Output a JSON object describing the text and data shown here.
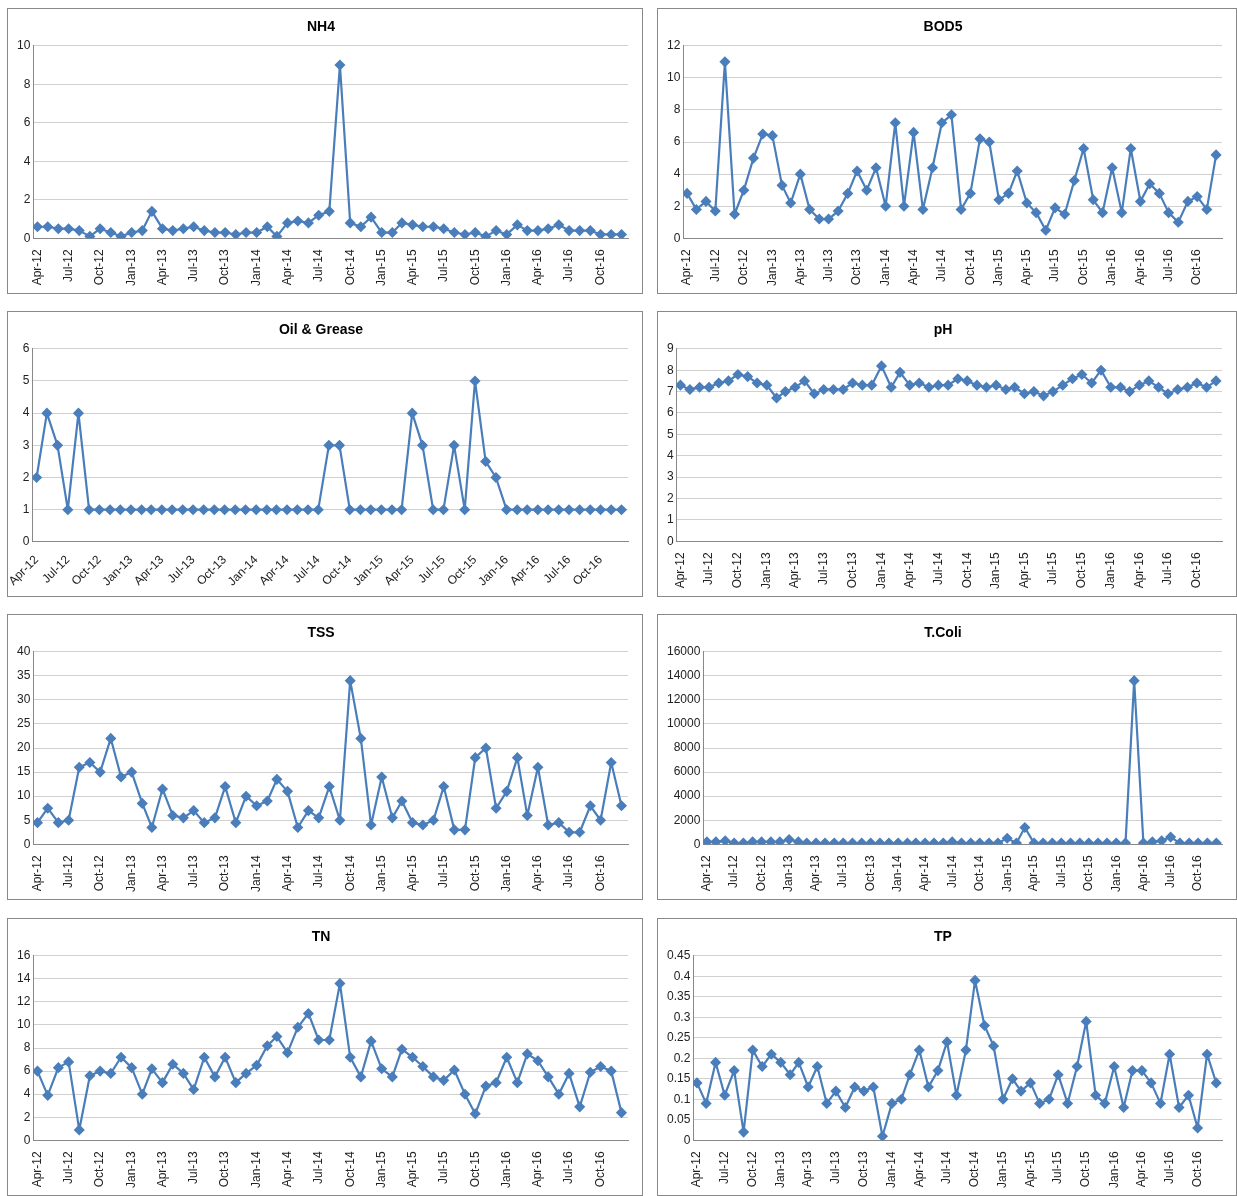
{
  "chart_data": [
    {
      "type": "line",
      "title": "NH4",
      "x": [
        "2012-04",
        "2012-05",
        "2012-06",
        "2012-07",
        "2012-08",
        "2012-09",
        "2012-10",
        "2012-11",
        "2012-12",
        "2013-01",
        "2013-02",
        "2013-03",
        "2013-04",
        "2013-05",
        "2013-06",
        "2013-07",
        "2013-08",
        "2013-09",
        "2013-10",
        "2013-11",
        "2013-12",
        "2014-01",
        "2014-02",
        "2014-03",
        "2014-04",
        "2014-05",
        "2014-06",
        "2014-07",
        "2014-08",
        "2014-09",
        "2014-10",
        "2014-11",
        "2014-12",
        "2015-01",
        "2015-02",
        "2015-03",
        "2015-04",
        "2015-05",
        "2015-06",
        "2015-07",
        "2015-08",
        "2015-09",
        "2015-10",
        "2015-11",
        "2015-12",
        "2016-01",
        "2016-02",
        "2016-03",
        "2016-04",
        "2016-05",
        "2016-06",
        "2016-07",
        "2016-08",
        "2016-09",
        "2016-10",
        "2016-11",
        "2016-12"
      ],
      "series": [
        {
          "color": "#4a7ebb",
          "values": [
            0.6,
            0.6,
            0.5,
            0.5,
            0.4,
            0.1,
            0.5,
            0.3,
            0.1,
            0.3,
            0.4,
            1.4,
            0.5,
            0.4,
            0.5,
            0.6,
            0.4,
            0.3,
            0.3,
            0.2,
            0.3,
            0.3,
            0.6,
            0.1,
            0.8,
            0.9,
            0.8,
            1.2,
            1.4,
            9,
            0.8,
            0.6,
            1.1,
            0.3,
            0.3,
            0.8,
            0.7,
            0.6,
            0.6,
            0.5,
            0.3,
            0.2,
            0.3,
            0.1,
            0.4,
            0.2,
            0.7,
            0.4,
            0.4,
            0.5,
            0.7,
            0.4,
            0.4,
            0.4,
            0.2,
            0.2,
            0.2
          ]
        }
      ],
      "xlim": [
        "2012-03-20",
        "2016-12-20"
      ],
      "xticks": [
        {
          "value": "2012-04",
          "label": "Apr-12"
        },
        {
          "value": "2012-07",
          "label": "Jul-12"
        },
        {
          "value": "2012-10",
          "label": "Oct-12"
        },
        {
          "value": "2013-01",
          "label": "Jan-13"
        },
        {
          "value": "2013-04",
          "label": "Apr-13"
        },
        {
          "value": "2013-07",
          "label": "Jul-13"
        },
        {
          "value": "2013-10",
          "label": "Oct-13"
        },
        {
          "value": "2014-01",
          "label": "Jan-14"
        },
        {
          "value": "2014-04",
          "label": "Apr-14"
        },
        {
          "value": "2014-07",
          "label": "Jul-14"
        },
        {
          "value": "2014-10",
          "label": "Oct-14"
        },
        {
          "value": "2015-01",
          "label": "Jan-15"
        },
        {
          "value": "2015-04",
          "label": "Apr-15"
        },
        {
          "value": "2015-07",
          "label": "Jul-15"
        },
        {
          "value": "2015-10",
          "label": "Oct-15"
        },
        {
          "value": "2016-01",
          "label": "Jan-16"
        },
        {
          "value": "2016-04",
          "label": "Apr-16"
        },
        {
          "value": "2016-07",
          "label": "Jul-16"
        },
        {
          "value": "2016-10",
          "label": "Oct-16"
        }
      ],
      "ylim": [
        0,
        10
      ],
      "yticks": [
        0,
        2,
        4,
        6,
        8,
        10
      ],
      "grid": "y",
      "marker": "diamond"
    },
    {
      "type": "line",
      "title": "BOD5",
      "x": [
        "2012-04",
        "2012-05",
        "2012-06",
        "2012-07",
        "2012-08",
        "2012-09",
        "2012-10",
        "2012-11",
        "2012-12",
        "2013-01",
        "2013-02",
        "2013-03",
        "2013-04",
        "2013-05",
        "2013-06",
        "2013-07",
        "2013-08",
        "2013-09",
        "2013-10",
        "2013-11",
        "2013-12",
        "2014-01",
        "2014-02",
        "2014-03",
        "2014-04",
        "2014-05",
        "2014-06",
        "2014-07",
        "2014-08",
        "2014-09",
        "2014-10",
        "2014-11",
        "2014-12",
        "2015-01",
        "2015-02",
        "2015-03",
        "2015-04",
        "2015-05",
        "2015-06",
        "2015-07",
        "2015-08",
        "2015-09",
        "2015-10",
        "2015-11",
        "2015-12",
        "2016-01",
        "2016-02",
        "2016-03",
        "2016-04",
        "2016-05",
        "2016-06",
        "2016-07",
        "2016-08",
        "2016-09",
        "2016-10",
        "2016-11",
        "2016-12"
      ],
      "series": [
        {
          "color": "#4a7ebb",
          "values": [
            2.8,
            1.8,
            2.3,
            1.7,
            11,
            1.5,
            3,
            5,
            6.5,
            6.4,
            3.3,
            2.2,
            4,
            1.8,
            1.2,
            1.2,
            1.7,
            2.8,
            4.2,
            3,
            4.4,
            2,
            7.2,
            2,
            6.6,
            1.8,
            4.4,
            7.2,
            7.7,
            1.8,
            2.8,
            6.2,
            6,
            2.4,
            2.8,
            4.2,
            2.2,
            1.6,
            0.5,
            1.9,
            1.5,
            3.6,
            5.6,
            2.4,
            1.6,
            4.4,
            1.6,
            5.6,
            2.3,
            3.4,
            2.8,
            1.6,
            1,
            2.3,
            2.6,
            1.8,
            5.2
          ]
        }
      ],
      "xlim": [
        "2012-03-20",
        "2016-12-20"
      ],
      "xticks": [
        {
          "value": "2012-04",
          "label": "Apr-12"
        },
        {
          "value": "2012-07",
          "label": "Jul-12"
        },
        {
          "value": "2012-10",
          "label": "Oct-12"
        },
        {
          "value": "2013-01",
          "label": "Jan-13"
        },
        {
          "value": "2013-04",
          "label": "Apr-13"
        },
        {
          "value": "2013-07",
          "label": "Jul-13"
        },
        {
          "value": "2013-10",
          "label": "Oct-13"
        },
        {
          "value": "2014-01",
          "label": "Jan-14"
        },
        {
          "value": "2014-04",
          "label": "Apr-14"
        },
        {
          "value": "2014-07",
          "label": "Jul-14"
        },
        {
          "value": "2014-10",
          "label": "Oct-14"
        },
        {
          "value": "2015-01",
          "label": "Jan-15"
        },
        {
          "value": "2015-04",
          "label": "Apr-15"
        },
        {
          "value": "2015-07",
          "label": "Jul-15"
        },
        {
          "value": "2015-10",
          "label": "Oct-15"
        },
        {
          "value": "2016-01",
          "label": "Jan-16"
        },
        {
          "value": "2016-04",
          "label": "Apr-16"
        },
        {
          "value": "2016-07",
          "label": "Jul-16"
        },
        {
          "value": "2016-10",
          "label": "Oct-16"
        }
      ],
      "ylim": [
        0,
        12
      ],
      "yticks": [
        0,
        2,
        4,
        6,
        8,
        10,
        12
      ],
      "grid": "y",
      "marker": "diamond"
    },
    {
      "type": "line",
      "title": "Oil & Grease",
      "x": [
        "2012-04",
        "2012-05",
        "2012-06",
        "2012-07",
        "2012-08",
        "2012-09",
        "2012-10",
        "2012-11",
        "2012-12",
        "2013-01",
        "2013-02",
        "2013-03",
        "2013-04",
        "2013-05",
        "2013-06",
        "2013-07",
        "2013-08",
        "2013-09",
        "2013-10",
        "2013-11",
        "2013-12",
        "2014-01",
        "2014-02",
        "2014-03",
        "2014-04",
        "2014-05",
        "2014-06",
        "2014-07",
        "2014-08",
        "2014-09",
        "2014-10",
        "2014-11",
        "2014-12",
        "2015-01",
        "2015-02",
        "2015-03",
        "2015-04",
        "2015-05",
        "2015-06",
        "2015-07",
        "2015-08",
        "2015-09",
        "2015-10",
        "2015-11",
        "2015-12",
        "2016-01",
        "2016-02",
        "2016-03",
        "2016-04",
        "2016-05",
        "2016-06",
        "2016-07",
        "2016-08",
        "2016-09",
        "2016-10",
        "2016-11",
        "2016-12"
      ],
      "series": [
        {
          "color": "#4a7ebb",
          "values": [
            2,
            4,
            3,
            1,
            4,
            1,
            1,
            1,
            1,
            1,
            1,
            1,
            1,
            1,
            1,
            1,
            1,
            1,
            1,
            1,
            1,
            1,
            1,
            1,
            1,
            1,
            1,
            1,
            3,
            3,
            1,
            1,
            1,
            1,
            1,
            1,
            4,
            3,
            1,
            1,
            3,
            1,
            5,
            2.5,
            2,
            1,
            1,
            1,
            1,
            1,
            1,
            1,
            1,
            1,
            1,
            1,
            1
          ]
        }
      ],
      "xlim": [
        "2012-03-20",
        "2016-12-20"
      ],
      "xticks": [
        {
          "value": "2012-04",
          "label": "Apr-12"
        },
        {
          "value": "2012-07",
          "label": "Jul-12"
        },
        {
          "value": "2012-10",
          "label": "Oct-12"
        },
        {
          "value": "2013-01",
          "label": "Jan-13"
        },
        {
          "value": "2013-04",
          "label": "Apr-13"
        },
        {
          "value": "2013-07",
          "label": "Jul-13"
        },
        {
          "value": "2013-10",
          "label": "Oct-13"
        },
        {
          "value": "2014-01",
          "label": "Jan-14"
        },
        {
          "value": "2014-04",
          "label": "Apr-14"
        },
        {
          "value": "2014-07",
          "label": "Jul-14"
        },
        {
          "value": "2014-10",
          "label": "Oct-14"
        },
        {
          "value": "2015-01",
          "label": "Jan-15"
        },
        {
          "value": "2015-04",
          "label": "Apr-15"
        },
        {
          "value": "2015-07",
          "label": "Jul-15"
        },
        {
          "value": "2015-10",
          "label": "Oct-15"
        },
        {
          "value": "2016-01",
          "label": "Jan-16"
        },
        {
          "value": "2016-04",
          "label": "Apr-16"
        },
        {
          "value": "2016-07",
          "label": "Jul-16"
        },
        {
          "value": "2016-10",
          "label": "Oct-16"
        }
      ],
      "ylim": [
        0,
        6
      ],
      "yticks": [
        0,
        1,
        2,
        3,
        4,
        5,
        6
      ],
      "grid": "y",
      "marker": "diamond"
    },
    {
      "type": "line",
      "title": "pH",
      "x": [
        "2012-04",
        "2012-05",
        "2012-06",
        "2012-07",
        "2012-08",
        "2012-09",
        "2012-10",
        "2012-11",
        "2012-12",
        "2013-01",
        "2013-02",
        "2013-03",
        "2013-04",
        "2013-05",
        "2013-06",
        "2013-07",
        "2013-08",
        "2013-09",
        "2013-10",
        "2013-11",
        "2013-12",
        "2014-01",
        "2014-02",
        "2014-03",
        "2014-04",
        "2014-05",
        "2014-06",
        "2014-07",
        "2014-08",
        "2014-09",
        "2014-10",
        "2014-11",
        "2014-12",
        "2015-01",
        "2015-02",
        "2015-03",
        "2015-04",
        "2015-05",
        "2015-06",
        "2015-07",
        "2015-08",
        "2015-09",
        "2015-10",
        "2015-11",
        "2015-12",
        "2016-01",
        "2016-02",
        "2016-03",
        "2016-04",
        "2016-05",
        "2016-06",
        "2016-07",
        "2016-08",
        "2016-09",
        "2016-10",
        "2016-11",
        "2016-12"
      ],
      "series": [
        {
          "color": "#4a7ebb",
          "values": [
            7.3,
            7.1,
            7.2,
            7.2,
            7.4,
            7.5,
            7.8,
            7.7,
            7.4,
            7.3,
            6.7,
            7,
            7.2,
            7.5,
            6.9,
            7.1,
            7.1,
            7.1,
            7.4,
            7.3,
            7.3,
            8.2,
            7.2,
            7.9,
            7.3,
            7.4,
            7.2,
            7.3,
            7.3,
            7.6,
            7.5,
            7.3,
            7.2,
            7.3,
            7.1,
            7.2,
            6.9,
            7,
            6.8,
            7,
            7.3,
            7.6,
            7.8,
            7.4,
            8,
            7.2,
            7.2,
            7,
            7.3,
            7.5,
            7.2,
            6.9,
            7.1,
            7.2,
            7.4,
            7.2,
            7.5
          ]
        }
      ],
      "xlim": [
        "2012-03-20",
        "2016-12-20"
      ],
      "xticks": [
        {
          "value": "2012-04",
          "label": "Apr-12"
        },
        {
          "value": "2012-07",
          "label": "Jul-12"
        },
        {
          "value": "2012-10",
          "label": "Oct-12"
        },
        {
          "value": "2013-01",
          "label": "Jan-13"
        },
        {
          "value": "2013-04",
          "label": "Apr-13"
        },
        {
          "value": "2013-07",
          "label": "Jul-13"
        },
        {
          "value": "2013-10",
          "label": "Oct-13"
        },
        {
          "value": "2014-01",
          "label": "Jan-14"
        },
        {
          "value": "2014-04",
          "label": "Apr-14"
        },
        {
          "value": "2014-07",
          "label": "Jul-14"
        },
        {
          "value": "2014-10",
          "label": "Oct-14"
        },
        {
          "value": "2015-01",
          "label": "Jan-15"
        },
        {
          "value": "2015-04",
          "label": "Apr-15"
        },
        {
          "value": "2015-07",
          "label": "Jul-15"
        },
        {
          "value": "2015-10",
          "label": "Oct-15"
        },
        {
          "value": "2016-01",
          "label": "Jan-16"
        },
        {
          "value": "2016-04",
          "label": "Apr-16"
        },
        {
          "value": "2016-07",
          "label": "Jul-16"
        },
        {
          "value": "2016-10",
          "label": "Oct-16"
        }
      ],
      "ylim": [
        0,
        9
      ],
      "yticks": [
        0,
        1,
        2,
        3,
        4,
        5,
        6,
        7,
        8,
        9
      ],
      "grid": "y",
      "marker": "diamond"
    },
    {
      "type": "line",
      "title": "TSS",
      "x": [
        "2012-04",
        "2012-05",
        "2012-06",
        "2012-07",
        "2012-08",
        "2012-09",
        "2012-10",
        "2012-11",
        "2012-12",
        "2013-01",
        "2013-02",
        "2013-03",
        "2013-04",
        "2013-05",
        "2013-06",
        "2013-07",
        "2013-08",
        "2013-09",
        "2013-10",
        "2013-11",
        "2013-12",
        "2014-01",
        "2014-02",
        "2014-03",
        "2014-04",
        "2014-05",
        "2014-06",
        "2014-07",
        "2014-08",
        "2014-09",
        "2014-10",
        "2014-11",
        "2014-12",
        "2015-01",
        "2015-02",
        "2015-03",
        "2015-04",
        "2015-05",
        "2015-06",
        "2015-07",
        "2015-08",
        "2015-09",
        "2015-10",
        "2015-11",
        "2015-12",
        "2016-01",
        "2016-02",
        "2016-03",
        "2016-04",
        "2016-05",
        "2016-06",
        "2016-07",
        "2016-08",
        "2016-09",
        "2016-10",
        "2016-11",
        "2016-12"
      ],
      "series": [
        {
          "color": "#4a7ebb",
          "values": [
            4.5,
            7.5,
            4.5,
            5,
            16,
            17,
            15,
            22,
            14,
            15,
            8.5,
            3.5,
            11.5,
            6,
            5.5,
            7,
            4.5,
            5.5,
            12,
            4.5,
            10,
            8,
            9,
            13.5,
            11,
            3.5,
            7,
            5.5,
            12,
            5,
            34,
            22,
            4,
            14,
            5.5,
            9,
            4.5,
            4,
            5,
            12,
            3,
            3,
            18,
            20,
            7.5,
            11,
            18,
            6,
            16,
            4,
            4.5,
            2.5,
            2.5,
            8,
            5,
            17,
            8
          ]
        }
      ],
      "xlim": [
        "2012-03-20",
        "2016-12-20"
      ],
      "xticks": [
        {
          "value": "2012-04",
          "label": "Apr-12"
        },
        {
          "value": "2012-07",
          "label": "Jul-12"
        },
        {
          "value": "2012-10",
          "label": "Oct-12"
        },
        {
          "value": "2013-01",
          "label": "Jan-13"
        },
        {
          "value": "2013-04",
          "label": "Apr-13"
        },
        {
          "value": "2013-07",
          "label": "Jul-13"
        },
        {
          "value": "2013-10",
          "label": "Oct-13"
        },
        {
          "value": "2014-01",
          "label": "Jan-14"
        },
        {
          "value": "2014-04",
          "label": "Apr-14"
        },
        {
          "value": "2014-07",
          "label": "Jul-14"
        },
        {
          "value": "2014-10",
          "label": "Oct-14"
        },
        {
          "value": "2015-01",
          "label": "Jan-15"
        },
        {
          "value": "2015-04",
          "label": "Apr-15"
        },
        {
          "value": "2015-07",
          "label": "Jul-15"
        },
        {
          "value": "2015-10",
          "label": "Oct-15"
        },
        {
          "value": "2016-01",
          "label": "Jan-16"
        },
        {
          "value": "2016-04",
          "label": "Apr-16"
        },
        {
          "value": "2016-07",
          "label": "Jul-16"
        },
        {
          "value": "2016-10",
          "label": "Oct-16"
        }
      ],
      "ylim": [
        0,
        40
      ],
      "yticks": [
        0,
        5,
        10,
        15,
        20,
        25,
        30,
        35,
        40
      ],
      "grid": "y",
      "marker": "diamond"
    },
    {
      "type": "line",
      "title": "T.Coli",
      "x": [
        "2012-04",
        "2012-05",
        "2012-06",
        "2012-07",
        "2012-08",
        "2012-09",
        "2012-10",
        "2012-11",
        "2012-12",
        "2013-01",
        "2013-02",
        "2013-03",
        "2013-04",
        "2013-05",
        "2013-06",
        "2013-07",
        "2013-08",
        "2013-09",
        "2013-10",
        "2013-11",
        "2013-12",
        "2014-01",
        "2014-02",
        "2014-03",
        "2014-04",
        "2014-05",
        "2014-06",
        "2014-07",
        "2014-08",
        "2014-09",
        "2014-10",
        "2014-11",
        "2014-12",
        "2015-01",
        "2015-02",
        "2015-03",
        "2015-04",
        "2015-05",
        "2015-06",
        "2015-07",
        "2015-08",
        "2015-09",
        "2015-10",
        "2015-11",
        "2015-12",
        "2016-01",
        "2016-02",
        "2016-03",
        "2016-04",
        "2016-05",
        "2016-06",
        "2016-07",
        "2016-08",
        "2016-09",
        "2016-10",
        "2016-11",
        "2016-12"
      ],
      "series": [
        {
          "color": "#4a7ebb",
          "values": [
            200,
            200,
            300,
            100,
            100,
            200,
            200,
            200,
            200,
            400,
            200,
            100,
            100,
            100,
            100,
            100,
            100,
            100,
            100,
            100,
            100,
            100,
            100,
            100,
            100,
            100,
            100,
            200,
            100,
            100,
            100,
            100,
            100,
            500,
            100,
            1400,
            100,
            100,
            100,
            100,
            100,
            100,
            100,
            100,
            100,
            100,
            100,
            13600,
            100,
            200,
            300,
            600,
            100,
            100,
            100,
            100,
            100
          ]
        }
      ],
      "xlim": [
        "2012-03-20",
        "2016-12-20"
      ],
      "xticks": [
        {
          "value": "2012-04",
          "label": "Apr-12"
        },
        {
          "value": "2012-07",
          "label": "Jul-12"
        },
        {
          "value": "2012-10",
          "label": "Oct-12"
        },
        {
          "value": "2013-01",
          "label": "Jan-13"
        },
        {
          "value": "2013-04",
          "label": "Apr-13"
        },
        {
          "value": "2013-07",
          "label": "Jul-13"
        },
        {
          "value": "2013-10",
          "label": "Oct-13"
        },
        {
          "value": "2014-01",
          "label": "Jan-14"
        },
        {
          "value": "2014-04",
          "label": "Apr-14"
        },
        {
          "value": "2014-07",
          "label": "Jul-14"
        },
        {
          "value": "2014-10",
          "label": "Oct-14"
        },
        {
          "value": "2015-01",
          "label": "Jan-15"
        },
        {
          "value": "2015-04",
          "label": "Apr-15"
        },
        {
          "value": "2015-07",
          "label": "Jul-15"
        },
        {
          "value": "2015-10",
          "label": "Oct-15"
        },
        {
          "value": "2016-01",
          "label": "Jan-16"
        },
        {
          "value": "2016-04",
          "label": "Apr-16"
        },
        {
          "value": "2016-07",
          "label": "Jul-16"
        },
        {
          "value": "2016-10",
          "label": "Oct-16"
        }
      ],
      "ylim": [
        0,
        16000
      ],
      "yticks": [
        0,
        2000,
        4000,
        6000,
        8000,
        10000,
        12000,
        14000,
        16000
      ],
      "grid": "y",
      "marker": "diamond"
    },
    {
      "type": "line",
      "title": "TN",
      "x": [
        "2012-04",
        "2012-05",
        "2012-06",
        "2012-07",
        "2012-08",
        "2012-09",
        "2012-10",
        "2012-11",
        "2012-12",
        "2013-01",
        "2013-02",
        "2013-03",
        "2013-04",
        "2013-05",
        "2013-06",
        "2013-07",
        "2013-08",
        "2013-09",
        "2013-10",
        "2013-11",
        "2013-12",
        "2014-01",
        "2014-02",
        "2014-03",
        "2014-04",
        "2014-05",
        "2014-06",
        "2014-07",
        "2014-08",
        "2014-09",
        "2014-10",
        "2014-11",
        "2014-12",
        "2015-01",
        "2015-02",
        "2015-03",
        "2015-04",
        "2015-05",
        "2015-06",
        "2015-07",
        "2015-08",
        "2015-09",
        "2015-10",
        "2015-11",
        "2015-12",
        "2016-01",
        "2016-02",
        "2016-03",
        "2016-04",
        "2016-05",
        "2016-06",
        "2016-07",
        "2016-08",
        "2016-09",
        "2016-10",
        "2016-11",
        "2016-12"
      ],
      "series": [
        {
          "color": "#4a7ebb",
          "values": [
            6,
            3.9,
            6.3,
            6.8,
            0.9,
            5.6,
            6,
            5.8,
            7.2,
            6.3,
            4,
            6.2,
            5,
            6.6,
            5.8,
            4.4,
            7.2,
            5.5,
            7.2,
            5,
            5.8,
            6.5,
            8.2,
            9,
            7.6,
            9.8,
            11,
            8.7,
            8.7,
            13.6,
            7.2,
            5.5,
            8.6,
            6.2,
            5.5,
            7.9,
            7.2,
            6.4,
            5.5,
            5.2,
            6.1,
            4,
            2.3,
            4.7,
            5,
            7.2,
            5,
            7.5,
            6.9,
            5.5,
            4,
            5.8,
            2.9,
            5.9,
            6.4,
            6,
            2.4
          ]
        }
      ],
      "xlim": [
        "2012-03-20",
        "2016-12-20"
      ],
      "xticks": [
        {
          "value": "2012-04",
          "label": "Apr-12"
        },
        {
          "value": "2012-07",
          "label": "Jul-12"
        },
        {
          "value": "2012-10",
          "label": "Oct-12"
        },
        {
          "value": "2013-01",
          "label": "Jan-13"
        },
        {
          "value": "2013-04",
          "label": "Apr-13"
        },
        {
          "value": "2013-07",
          "label": "Jul-13"
        },
        {
          "value": "2013-10",
          "label": "Oct-13"
        },
        {
          "value": "2014-01",
          "label": "Jan-14"
        },
        {
          "value": "2014-04",
          "label": "Apr-14"
        },
        {
          "value": "2014-07",
          "label": "Jul-14"
        },
        {
          "value": "2014-10",
          "label": "Oct-14"
        },
        {
          "value": "2015-01",
          "label": "Jan-15"
        },
        {
          "value": "2015-04",
          "label": "Apr-15"
        },
        {
          "value": "2015-07",
          "label": "Jul-15"
        },
        {
          "value": "2015-10",
          "label": "Oct-15"
        },
        {
          "value": "2016-01",
          "label": "Jan-16"
        },
        {
          "value": "2016-04",
          "label": "Apr-16"
        },
        {
          "value": "2016-07",
          "label": "Jul-16"
        },
        {
          "value": "2016-10",
          "label": "Oct-16"
        }
      ],
      "ylim": [
        0,
        16
      ],
      "yticks": [
        0,
        2,
        4,
        6,
        8,
        10,
        12,
        14,
        16
      ],
      "grid": "y",
      "marker": "diamond"
    },
    {
      "type": "line",
      "title": "TP",
      "x": [
        "2012-04",
        "2012-05",
        "2012-06",
        "2012-07",
        "2012-08",
        "2012-09",
        "2012-10",
        "2012-11",
        "2012-12",
        "2013-01",
        "2013-02",
        "2013-03",
        "2013-04",
        "2013-05",
        "2013-06",
        "2013-07",
        "2013-08",
        "2013-09",
        "2013-10",
        "2013-11",
        "2013-12",
        "2014-01",
        "2014-02",
        "2014-03",
        "2014-04",
        "2014-05",
        "2014-06",
        "2014-07",
        "2014-08",
        "2014-09",
        "2014-10",
        "2014-11",
        "2014-12",
        "2015-01",
        "2015-02",
        "2015-03",
        "2015-04",
        "2015-05",
        "2015-06",
        "2015-07",
        "2015-08",
        "2015-09",
        "2015-10",
        "2015-11",
        "2015-12",
        "2016-01",
        "2016-02",
        "2016-03",
        "2016-04",
        "2016-05",
        "2016-06",
        "2016-07",
        "2016-08",
        "2016-09",
        "2016-10",
        "2016-11",
        "2016-12"
      ],
      "series": [
        {
          "color": "#4a7ebb",
          "values": [
            0.14,
            0.09,
            0.19,
            0.11,
            0.17,
            0.02,
            0.22,
            0.18,
            0.21,
            0.19,
            0.16,
            0.19,
            0.13,
            0.18,
            0.09,
            0.12,
            0.08,
            0.13,
            0.12,
            0.13,
            0.01,
            0.09,
            0.1,
            0.16,
            0.22,
            0.13,
            0.17,
            0.24,
            0.11,
            0.22,
            0.39,
            0.28,
            0.23,
            0.1,
            0.15,
            0.12,
            0.14,
            0.09,
            0.1,
            0.16,
            0.09,
            0.18,
            0.29,
            0.11,
            0.09,
            0.18,
            0.08,
            0.17,
            0.17,
            0.14,
            0.09,
            0.21,
            0.08,
            0.11,
            0.03,
            0.21,
            0.14
          ]
        }
      ],
      "xlim": [
        "2012-03-20",
        "2016-12-20"
      ],
      "xticks": [
        {
          "value": "2012-04",
          "label": "Apr-12"
        },
        {
          "value": "2012-07",
          "label": "Jul-12"
        },
        {
          "value": "2012-10",
          "label": "Oct-12"
        },
        {
          "value": "2013-01",
          "label": "Jan-13"
        },
        {
          "value": "2013-04",
          "label": "Apr-13"
        },
        {
          "value": "2013-07",
          "label": "Jul-13"
        },
        {
          "value": "2013-10",
          "label": "Oct-13"
        },
        {
          "value": "2014-01",
          "label": "Jan-14"
        },
        {
          "value": "2014-04",
          "label": "Apr-14"
        },
        {
          "value": "2014-07",
          "label": "Jul-14"
        },
        {
          "value": "2014-10",
          "label": "Oct-14"
        },
        {
          "value": "2015-01",
          "label": "Jan-15"
        },
        {
          "value": "2015-04",
          "label": "Apr-15"
        },
        {
          "value": "2015-07",
          "label": "Jul-15"
        },
        {
          "value": "2015-10",
          "label": "Oct-15"
        },
        {
          "value": "2016-01",
          "label": "Jan-16"
        },
        {
          "value": "2016-04",
          "label": "Apr-16"
        },
        {
          "value": "2016-07",
          "label": "Jul-16"
        },
        {
          "value": "2016-10",
          "label": "Oct-16"
        }
      ],
      "ylim": [
        0,
        0.45
      ],
      "yticks": [
        0,
        0.05,
        0.1,
        0.15,
        0.2,
        0.25,
        0.3,
        0.35,
        0.4,
        0.45
      ],
      "grid": "y",
      "marker": "diamond"
    }
  ]
}
